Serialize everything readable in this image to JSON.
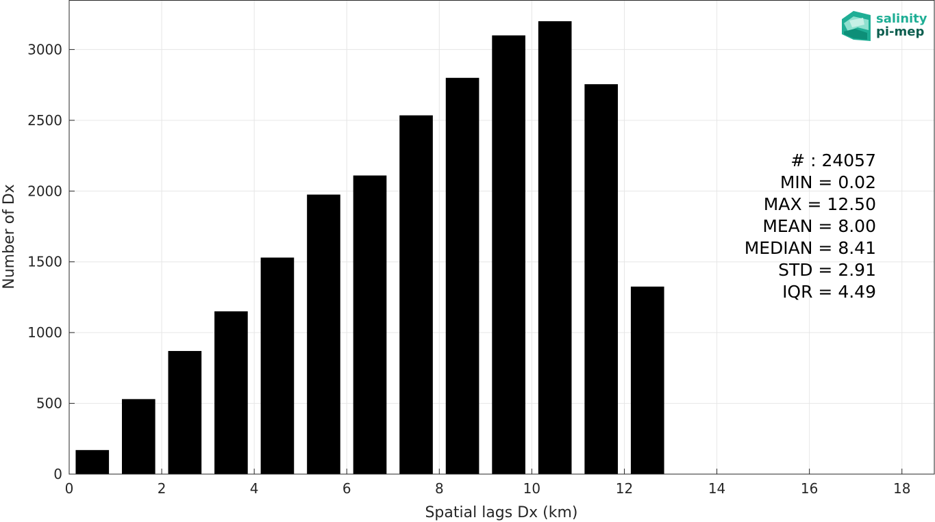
{
  "chart_data": {
    "type": "bar",
    "x": [
      0.5,
      1.5,
      2.5,
      3.5,
      4.5,
      5.5,
      6.5,
      7.5,
      8.5,
      9.5,
      10.5,
      11.5,
      12.5
    ],
    "values": [
      170,
      530,
      870,
      1150,
      1530,
      1975,
      2110,
      2535,
      2800,
      3100,
      3200,
      2755,
      1325
    ],
    "xlabel": "Spatial lags Dx (km)",
    "ylabel": "Number of Dx",
    "xlim": [
      0,
      18.7
    ],
    "ylim": [
      0,
      3350
    ],
    "xticks": [
      0,
      2,
      4,
      6,
      8,
      10,
      12,
      14,
      16,
      18
    ],
    "yticks": [
      0,
      500,
      1000,
      1500,
      2000,
      2500,
      3000
    ],
    "grid": true,
    "bar_color": "#000000",
    "stats": [
      "# : 24057",
      "MIN = 0.02",
      "MAX =  12.50",
      "MEAN = 8.00",
      "MEDIAN = 8.41",
      "STD = 2.91",
      "IQR = 4.49"
    ]
  },
  "logo": {
    "line1": "salinity",
    "line2": "pi-mep",
    "color_primary": "#1fae95",
    "color_dark": "#0d5e4f"
  }
}
